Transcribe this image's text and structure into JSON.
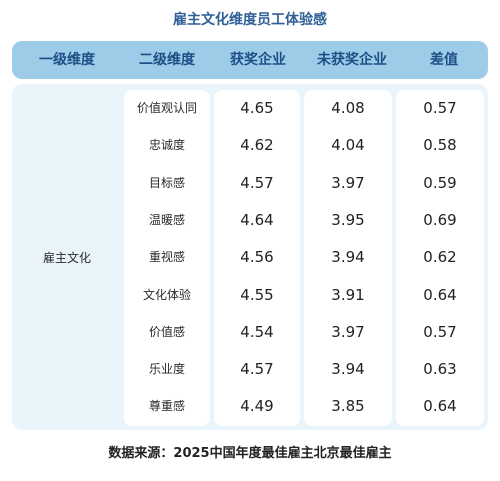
{
  "title": "雇主文化维度员工体验感",
  "headers": [
    "一级维度",
    "二级维度",
    "获奖企业",
    "未获奖企业",
    "差值"
  ],
  "group_label": "雇主文化",
  "rows": [
    {
      "dim": "价值观认同",
      "award": "4.65",
      "nonaward": "4.08",
      "diff": "0.57"
    },
    {
      "dim": "忠诚度",
      "award": "4.62",
      "nonaward": "4.04",
      "diff": "0.58"
    },
    {
      "dim": "目标感",
      "award": "4.57",
      "nonaward": "3.97",
      "diff": "0.59"
    },
    {
      "dim": "温暖感",
      "award": "4.64",
      "nonaward": "3.95",
      "diff": "0.69"
    },
    {
      "dim": "重视感",
      "award": "4.56",
      "nonaward": "3.94",
      "diff": "0.62"
    },
    {
      "dim": "文化体验",
      "award": "4.55",
      "nonaward": "3.91",
      "diff": "0.64"
    },
    {
      "dim": "价值感",
      "award": "4.54",
      "nonaward": "3.97",
      "diff": "0.57"
    },
    {
      "dim": "乐业度",
      "award": "4.57",
      "nonaward": "3.94",
      "diff": "0.63"
    },
    {
      "dim": "尊重感",
      "award": "4.49",
      "nonaward": "3.85",
      "diff": "0.64"
    }
  ],
  "source": "数据来源：2025中国年度最佳雇主北京最佳雇主"
}
